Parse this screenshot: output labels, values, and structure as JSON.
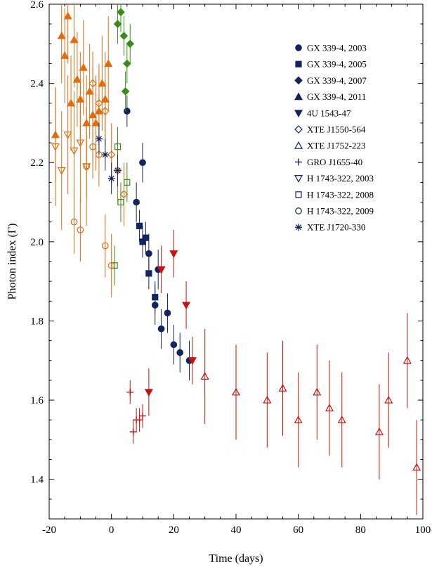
{
  "chart_data": {
    "type": "scatter",
    "title": "",
    "xlabel": "Time (days)",
    "ylabel": "Photon index (Γ)",
    "xlim": [
      -20,
      100
    ],
    "ylim": [
      1.3,
      2.6
    ],
    "xticks": [
      -20,
      0,
      20,
      40,
      60,
      80,
      100
    ],
    "xtick_labels": [
      "-20",
      "0",
      "20",
      "40",
      "60",
      "80",
      "100"
    ],
    "yticks": [
      1.4,
      1.6,
      1.8,
      2.0,
      2.2,
      2.4,
      2.6
    ],
    "ytick_labels": [
      "1.4",
      "1.6",
      "1.8",
      "2.0",
      "2.2",
      "2.4",
      "2.6"
    ],
    "grid": false,
    "legend_position": "top-right",
    "colors": {
      "orange": "#e06c10",
      "green": "#3a8c1a",
      "navy": "#14245e",
      "red": "#c8120e"
    },
    "series": [
      {
        "name": "GX 339-4, 2003",
        "marker": "circle",
        "filled": true,
        "color": "#14245e",
        "x": [
          5,
          8,
          10,
          12,
          15,
          18,
          20,
          22,
          25,
          14,
          16
        ],
        "y": [
          2.33,
          2.1,
          2.2,
          1.97,
          1.93,
          1.82,
          1.74,
          1.72,
          1.7,
          1.84,
          1.78
        ],
        "err": [
          0.04,
          0.05,
          0.05,
          0.05,
          0.05,
          0.05,
          0.05,
          0.05,
          0.05,
          0.05,
          0.05
        ]
      },
      {
        "name": "GX 339-4, 2005",
        "marker": "square",
        "filled": true,
        "color": "#14245e",
        "x": [
          10,
          11,
          12,
          14,
          9
        ],
        "y": [
          2.0,
          2.01,
          1.92,
          1.86,
          2.04
        ],
        "err": [
          0.04,
          0.04,
          0.04,
          0.04,
          0.04
        ]
      },
      {
        "name": "GX 339-4, 2007",
        "marker": "diamond",
        "filled": true,
        "color": "#3a8c1a",
        "x": [
          2,
          3,
          4,
          5,
          6,
          4.5
        ],
        "y": [
          2.55,
          2.58,
          2.52,
          2.45,
          2.5,
          2.38
        ],
        "err": [
          0.05,
          0.05,
          0.05,
          0.05,
          0.05,
          0.05
        ]
      },
      {
        "name": "GX 339-4, 2011",
        "marker": "triangle",
        "filled": true,
        "color": "#e06c10",
        "x": [
          -18,
          -16,
          -15,
          -14,
          -13,
          -12,
          -11,
          -10,
          -9,
          -8,
          -7,
          -6,
          -5,
          -4,
          -3,
          -2,
          -1
        ],
        "y": [
          2.27,
          2.52,
          2.47,
          2.57,
          2.35,
          2.51,
          2.41,
          2.36,
          2.44,
          2.3,
          2.38,
          2.32,
          2.3,
          2.33,
          2.4,
          2.36,
          2.45
        ],
        "err": [
          0.12,
          0.12,
          0.12,
          0.12,
          0.12,
          0.12,
          0.12,
          0.12,
          0.12,
          0.12,
          0.12,
          0.12,
          0.12,
          0.12,
          0.12,
          0.12,
          0.12
        ]
      },
      {
        "name": "4U 1543-47",
        "marker": "triangle-down",
        "filled": true,
        "color": "#c8120e",
        "x": [
          20,
          24,
          26,
          16,
          12
        ],
        "y": [
          1.97,
          1.84,
          1.7,
          1.93,
          1.62
        ],
        "err": [
          0.06,
          0.06,
          0.06,
          0.06,
          0.06
        ]
      },
      {
        "name": "XTE J1550-564",
        "marker": "diamond",
        "filled": false,
        "color": "#e06c10",
        "x": [
          -6,
          -4,
          -2,
          0,
          2,
          4
        ],
        "y": [
          2.4,
          2.35,
          2.33,
          2.22,
          2.18,
          2.12
        ],
        "err": [
          0.08,
          0.08,
          0.08,
          0.08,
          0.08,
          0.08
        ]
      },
      {
        "name": "XTE J1752-223",
        "marker": "triangle",
        "filled": false,
        "color": "#c8120e",
        "x": [
          30,
          40,
          50,
          55,
          60,
          66,
          70,
          74,
          86,
          89,
          95,
          98
        ],
        "y": [
          1.66,
          1.62,
          1.6,
          1.63,
          1.55,
          1.62,
          1.58,
          1.55,
          1.52,
          1.6,
          1.7,
          1.43
        ],
        "err": [
          0.12,
          0.12,
          0.12,
          0.12,
          0.12,
          0.12,
          0.12,
          0.12,
          0.12,
          0.12,
          0.12,
          0.12
        ]
      },
      {
        "name": "GRO J1655-40",
        "marker": "plus",
        "filled": false,
        "color": "#c8120e",
        "x": [
          7,
          8,
          9,
          10,
          6
        ],
        "y": [
          1.52,
          1.55,
          1.55,
          1.56,
          1.62
        ],
        "err": [
          0.03,
          0.03,
          0.03,
          0.03,
          0.03
        ]
      },
      {
        "name": "H 1743-322, 2003",
        "marker": "triangle-down",
        "filled": false,
        "color": "#e06c10",
        "x": [
          -18,
          -16,
          -14,
          -12,
          -10,
          -8
        ],
        "y": [
          2.24,
          2.18,
          2.27,
          2.23,
          2.25,
          2.19
        ],
        "err": [
          0.15,
          0.15,
          0.15,
          0.15,
          0.15,
          0.15
        ]
      },
      {
        "name": "H 1743-322, 2008",
        "marker": "square",
        "filled": false,
        "color": "#3a8c1a",
        "x": [
          1,
          3,
          5,
          2
        ],
        "y": [
          1.94,
          2.1,
          2.15,
          2.24
        ],
        "err": [
          0.05,
          0.05,
          0.05,
          0.05
        ]
      },
      {
        "name": "H 1743-322, 2009",
        "marker": "circle",
        "filled": false,
        "color": "#e06c10",
        "x": [
          -12,
          -10,
          -8,
          -6,
          -4,
          -2,
          0
        ],
        "y": [
          2.05,
          2.03,
          2.19,
          2.24,
          2.22,
          1.99,
          1.94
        ],
        "err": [
          0.08,
          0.08,
          0.08,
          0.08,
          0.08,
          0.08,
          0.08
        ]
      },
      {
        "name": "XTE J1720-330",
        "marker": "asterisk",
        "filled": false,
        "color": "#14245e",
        "x": [
          -4,
          -2,
          0,
          2
        ],
        "y": [
          2.26,
          2.22,
          2.16,
          2.18
        ],
        "err": [
          0.04,
          0.04,
          0.04,
          0.04
        ]
      }
    ]
  }
}
